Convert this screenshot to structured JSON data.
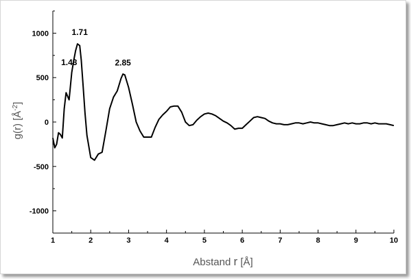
{
  "chart_data": {
    "type": "line",
    "xlabel": "Abstand",
    "xlabel_symbol": "r",
    "xlabel_unit": "[Å]",
    "ylabel_base": "g(r) [Å",
    "ylabel_exp": "-2",
    "ylabel_close": "]",
    "xlim": [
      1,
      10
    ],
    "ylim": [
      -1250,
      1250
    ],
    "x_ticks": [
      1,
      2,
      3,
      4,
      5,
      6,
      7,
      8,
      9,
      10
    ],
    "y_ticks": [
      -1000,
      -500,
      0,
      500,
      1000
    ],
    "grid": false,
    "annotations": [
      {
        "text": "1.43",
        "x": 1.43,
        "y": 640
      },
      {
        "text": "1.71",
        "x": 1.71,
        "y": 980
      },
      {
        "text": "2.85",
        "x": 2.85,
        "y": 635
      }
    ],
    "series": [
      {
        "x": [
          1.0,
          1.05,
          1.1,
          1.15,
          1.2,
          1.25,
          1.3,
          1.35,
          1.43,
          1.5,
          1.55,
          1.6,
          1.65,
          1.71,
          1.75,
          1.8,
          1.85,
          1.9,
          2.0,
          2.1,
          2.2,
          2.3,
          2.4,
          2.5,
          2.6,
          2.7,
          2.8,
          2.85,
          2.9,
          3.0,
          3.1,
          3.2,
          3.3,
          3.4,
          3.5,
          3.6,
          3.7,
          3.8,
          3.9,
          4.0,
          4.1,
          4.2,
          4.3,
          4.4,
          4.5,
          4.6,
          4.7,
          4.8,
          4.9,
          5.0,
          5.1,
          5.2,
          5.3,
          5.4,
          5.5,
          5.6,
          5.7,
          5.8,
          5.9,
          6.0,
          6.1,
          6.2,
          6.3,
          6.4,
          6.5,
          6.6,
          6.7,
          6.8,
          6.9,
          7.0,
          7.1,
          7.2,
          7.3,
          7.4,
          7.5,
          7.6,
          7.7,
          7.8,
          7.9,
          8.0,
          8.1,
          8.2,
          8.3,
          8.4,
          8.5,
          8.6,
          8.7,
          8.8,
          8.9,
          9.0,
          9.1,
          9.2,
          9.3,
          9.4,
          9.5,
          9.6,
          9.7,
          9.8,
          9.9,
          10.0
        ],
        "values": [
          -180,
          -290,
          -250,
          -120,
          -140,
          -180,
          150,
          330,
          250,
          560,
          690,
          800,
          880,
          860,
          700,
          400,
          100,
          -150,
          -400,
          -430,
          -360,
          -340,
          -100,
          150,
          280,
          350,
          490,
          540,
          530,
          390,
          200,
          0,
          -100,
          -170,
          -170,
          -170,
          -60,
          30,
          80,
          120,
          170,
          180,
          180,
          110,
          0,
          -40,
          -30,
          20,
          60,
          90,
          100,
          90,
          70,
          40,
          10,
          -10,
          -40,
          -80,
          -70,
          -70,
          -30,
          10,
          50,
          60,
          50,
          40,
          10,
          -10,
          -20,
          -20,
          -30,
          -30,
          -20,
          -10,
          -10,
          -20,
          -10,
          0,
          -10,
          -10,
          -20,
          -30,
          -40,
          -40,
          -30,
          -20,
          -10,
          -20,
          -10,
          -20,
          -20,
          -10,
          -10,
          -20,
          -10,
          -20,
          -20,
          -20,
          -30,
          -40
        ]
      }
    ]
  }
}
